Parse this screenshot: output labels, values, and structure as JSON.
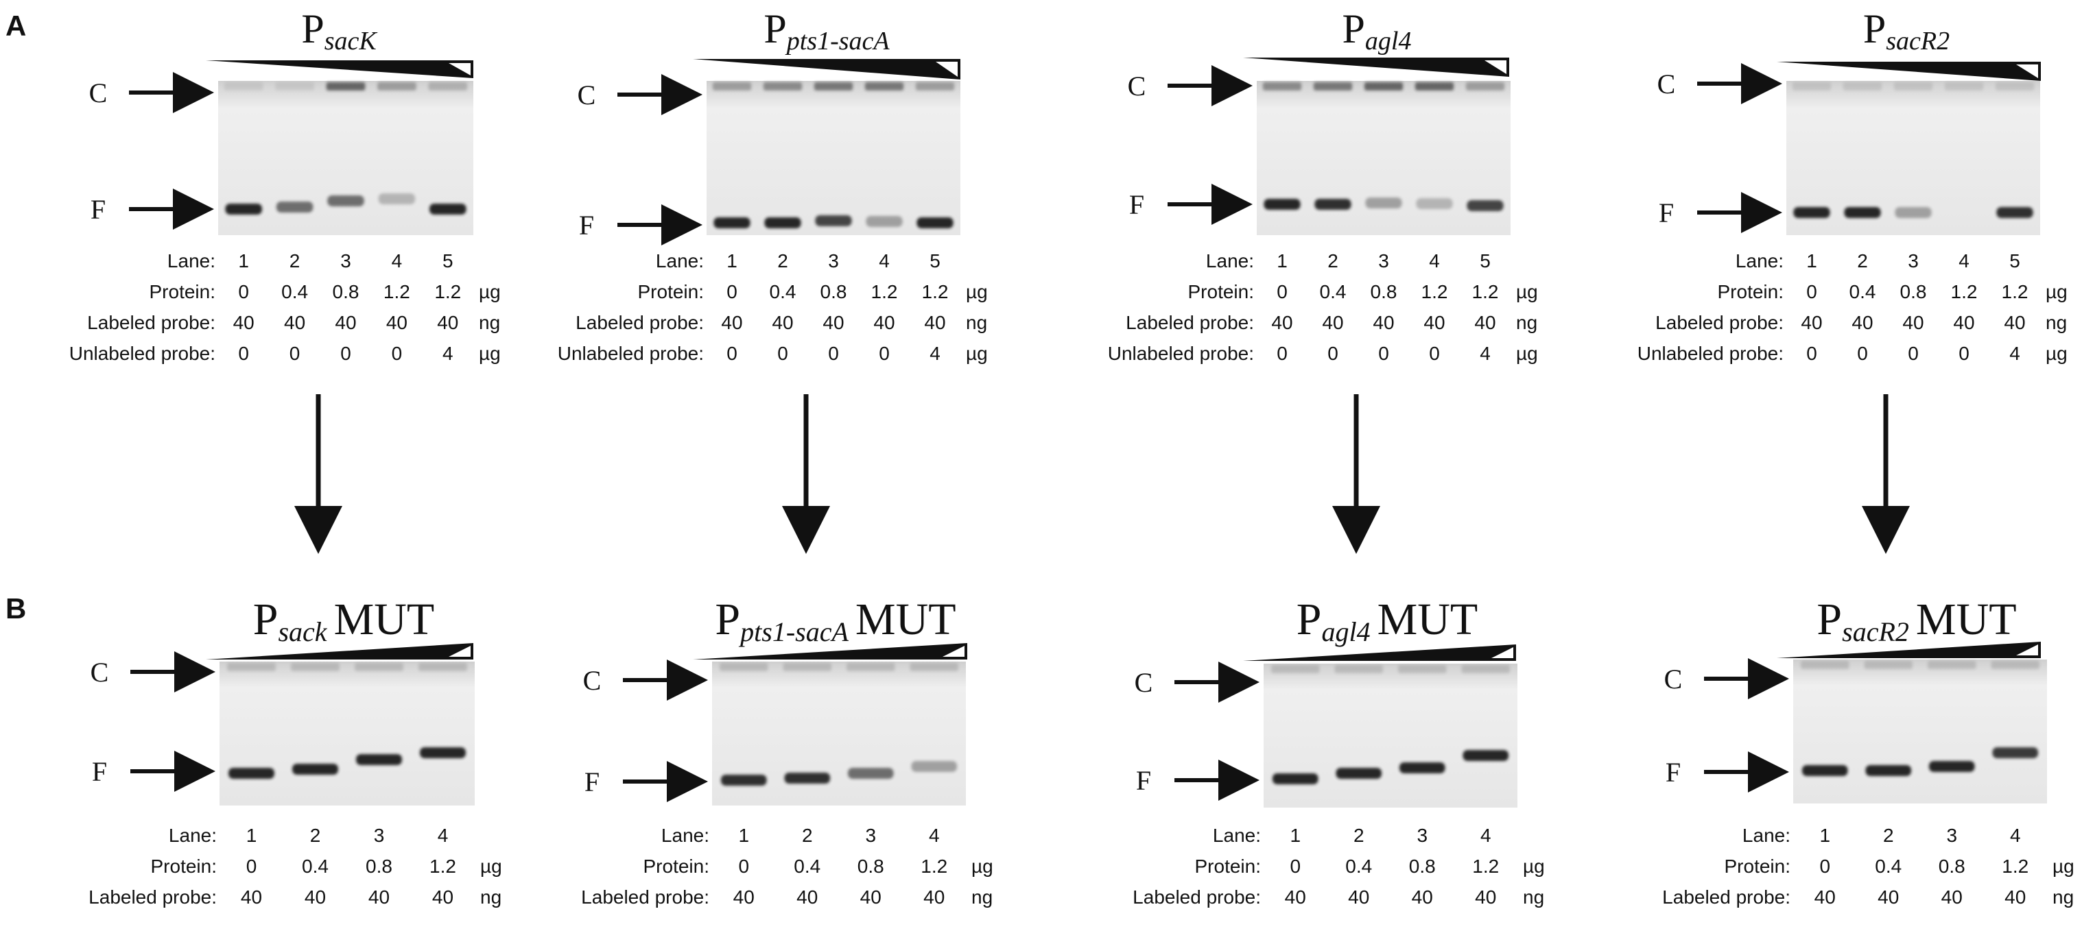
{
  "panel_labels": {
    "a": "A",
    "b": "B"
  },
  "markers": {
    "complex": "C",
    "free": "F"
  },
  "row_labels": {
    "lane": "Lane:",
    "protein": "Protein:",
    "labeled_probe": "Labeled probe:",
    "unlabeled_probe": "Unlabeled probe:"
  },
  "units": {
    "protein": "µg",
    "labeled_probe": "ng",
    "unlabeled_probe": "µg"
  },
  "mut_suffix": "MUT",
  "panel_a": {
    "lanes": [
      "1",
      "2",
      "3",
      "4",
      "5"
    ],
    "protein": [
      "0",
      "0.4",
      "0.8",
      "1.2",
      "1.2"
    ],
    "labeled_probe": [
      "40",
      "40",
      "40",
      "40",
      "40"
    ],
    "unlabeled_probe": [
      "0",
      "0",
      "0",
      "0",
      "4"
    ],
    "gels": [
      {
        "title_main": "P",
        "title_sub": "sacK"
      },
      {
        "title_main": "P",
        "title_sub": "pts1-sacA"
      },
      {
        "title_main": "P",
        "title_sub": "agl4"
      },
      {
        "title_main": "P",
        "title_sub": "sacR2"
      }
    ]
  },
  "panel_b": {
    "lanes": [
      "1",
      "2",
      "3",
      "4"
    ],
    "protein": [
      "0",
      "0.4",
      "0.8",
      "1.2"
    ],
    "labeled_probe": [
      "40",
      "40",
      "40",
      "40"
    ],
    "gels": [
      {
        "title_main": "P",
        "title_sub": "sack"
      },
      {
        "title_main": "P",
        "title_sub": "pts1-sacA"
      },
      {
        "title_main": "P",
        "title_sub": "agl4"
      },
      {
        "title_main": "P",
        "title_sub": "sacR2"
      }
    ]
  },
  "colors": {
    "ink": "#111111",
    "gel_light": "#efefef",
    "gel_dark": "#cfcfcf",
    "band": "#1a1a1a"
  }
}
